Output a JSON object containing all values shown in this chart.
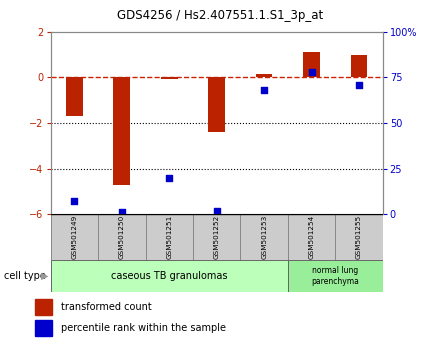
{
  "title": "GDS4256 / Hs2.407551.1.S1_3p_at",
  "samples": [
    "GSM501249",
    "GSM501250",
    "GSM501251",
    "GSM501252",
    "GSM501253",
    "GSM501254",
    "GSM501255"
  ],
  "red_values": [
    -1.7,
    -4.7,
    -0.05,
    -2.4,
    0.15,
    1.1,
    1.0
  ],
  "blue_values_pct": [
    7,
    1,
    20,
    2,
    68,
    78,
    71
  ],
  "ylim_left": [
    -6,
    2
  ],
  "ylim_right": [
    0,
    100
  ],
  "yticks_left": [
    -6,
    -4,
    -2,
    0,
    2
  ],
  "yticks_right": [
    0,
    25,
    50,
    75,
    100
  ],
  "ytick_right_labels": [
    "0",
    "25",
    "50",
    "75",
    "100%"
  ],
  "red_color": "#bb2200",
  "blue_color": "#0000cc",
  "dashed_line_color": "#cc2200",
  "dotted_line_color": "#000000",
  "bar_width": 0.35,
  "group1_label": "caseous TB granulomas",
  "group1_color": "#bbffbb",
  "group2_label": "normal lung\nparenchyma",
  "group2_color": "#99ee99",
  "sample_box_color": "#cccccc",
  "sample_box_edge": "#888888",
  "legend_red": "transformed count",
  "legend_blue": "percentile rank within the sample",
  "cell_type_label": "cell type",
  "bg_color": "#ffffff"
}
